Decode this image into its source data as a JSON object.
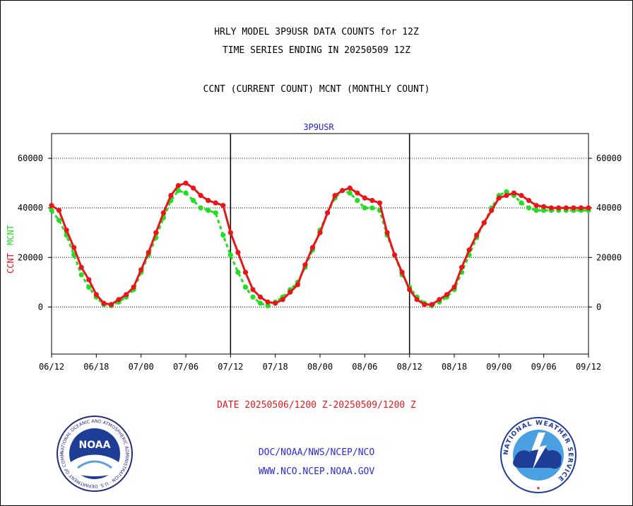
{
  "header": {
    "title_line1": "HRLY MODEL 3P9USR DATA COUNTS for 12Z",
    "title_line2": "TIME SERIES ENDING IN 20250509 12Z",
    "subtitle": "CCNT (CURRENT COUNT) MCNT (MONTHLY COUNT)"
  },
  "footer": {
    "date_range": "DATE 20250506/1200 Z-20250509/1200 Z",
    "org_path": "DOC/NOAA/NWS/NCEP/NCO",
    "website": "WWW.NCO.NCEP.NOAA.GOV"
  },
  "logos": {
    "noaa_text": "NOAA",
    "noaa_ring_text": "NATIONAL OCEANIC AND ATMOSPHERIC ADMINISTRATION · U.S. DEPARTMENT OF COMMERCE",
    "nws_ring_text": "NATIONAL WEATHER SERVICE"
  },
  "colors": {
    "ccnt": "#e8161b",
    "mcnt": "#22dd22",
    "panel_title": "#2222cc",
    "date_text": "#e8161b",
    "links": "#2b2bd6"
  },
  "chart_data": {
    "type": "line",
    "panel_title": "3P9USR",
    "ylabel_ccnt": "CCNT",
    "ylabel_mcnt": "MCNT",
    "ylim": [
      -19000,
      70000
    ],
    "y_ticks": [
      0,
      20000,
      40000,
      60000
    ],
    "grid": "dotted horizontal at y ticks",
    "x_ticks": [
      "06/12",
      "06/18",
      "07/00",
      "07/06",
      "07/12",
      "07/18",
      "08/00",
      "08/06",
      "08/12",
      "08/18",
      "09/00",
      "09/06",
      "09/12"
    ],
    "x_unit": "day/hour",
    "x_range_hours": [
      0,
      72
    ],
    "day_separators": [
      "07/12",
      "08/12"
    ],
    "series": [
      {
        "name": "CCNT",
        "color": "#e8161b",
        "x": [
          0,
          1,
          2,
          3,
          4,
          5,
          6,
          7,
          8,
          9,
          10,
          11,
          12,
          13,
          14,
          15,
          16,
          17,
          18,
          19,
          20,
          21,
          22,
          23,
          24,
          25,
          26,
          27,
          28,
          29,
          30,
          31,
          32,
          33,
          34,
          35,
          36,
          37,
          38,
          39,
          40,
          41,
          42,
          43,
          44,
          45,
          46,
          47,
          48,
          49,
          50,
          51,
          52,
          53,
          54,
          55,
          56,
          57,
          58,
          59,
          60,
          61,
          62,
          63,
          64,
          65,
          66,
          67,
          68,
          69,
          70,
          71,
          72
        ],
        "values": [
          41000,
          39000,
          31000,
          24000,
          16000,
          11000,
          5000,
          1500,
          1000,
          3000,
          5000,
          8000,
          15000,
          22000,
          30000,
          38000,
          45000,
          49000,
          50000,
          48000,
          45000,
          43000,
          42000,
          41000,
          30000,
          22000,
          14000,
          7000,
          4000,
          2000,
          1500,
          3000,
          6000,
          9000,
          17000,
          24000,
          30000,
          38000,
          45000,
          47000,
          48000,
          46000,
          44000,
          43000,
          42000,
          30000,
          21000,
          14000,
          7000,
          3000,
          1000,
          1000,
          3000,
          5000,
          8000,
          16000,
          23000,
          29000,
          34000,
          39000,
          44000,
          45000,
          46000,
          45000,
          43000,
          41000,
          40500,
          40000,
          40000,
          40000,
          40000,
          40000,
          40000
        ]
      },
      {
        "name": "MCNT",
        "color": "#22dd22",
        "x": [
          0,
          1,
          2,
          3,
          4,
          5,
          6,
          7,
          8,
          9,
          10,
          11,
          12,
          13,
          14,
          15,
          16,
          17,
          18,
          19,
          20,
          21,
          22,
          23,
          24,
          25,
          26,
          27,
          28,
          29,
          30,
          31,
          32,
          33,
          34,
          35,
          36,
          37,
          38,
          39,
          40,
          41,
          42,
          43,
          44,
          45,
          46,
          47,
          48,
          49,
          50,
          51,
          52,
          53,
          54,
          55,
          56,
          57,
          58,
          59,
          60,
          61,
          62,
          63,
          64,
          65,
          66,
          67,
          68,
          69,
          70,
          71,
          72
        ],
        "values": [
          39000,
          35000,
          29000,
          21000,
          13000,
          8000,
          4000,
          1000,
          500,
          2000,
          4000,
          7000,
          14000,
          21000,
          28000,
          36000,
          43000,
          47000,
          46000,
          43000,
          40000,
          39000,
          38000,
          29000,
          21000,
          14000,
          8000,
          4000,
          1500,
          500,
          2000,
          4000,
          7000,
          10000,
          16000,
          23000,
          31000,
          38000,
          44000,
          47000,
          46000,
          43000,
          40000,
          40000,
          39000,
          29000,
          21000,
          13000,
          8000,
          4000,
          1500,
          500,
          2000,
          4000,
          7000,
          14000,
          21000,
          28000,
          34000,
          40000,
          45000,
          46500,
          45000,
          42000,
          40000,
          39000,
          39000,
          39000,
          39000,
          39000,
          39000,
          39000,
          39000
        ]
      }
    ]
  }
}
